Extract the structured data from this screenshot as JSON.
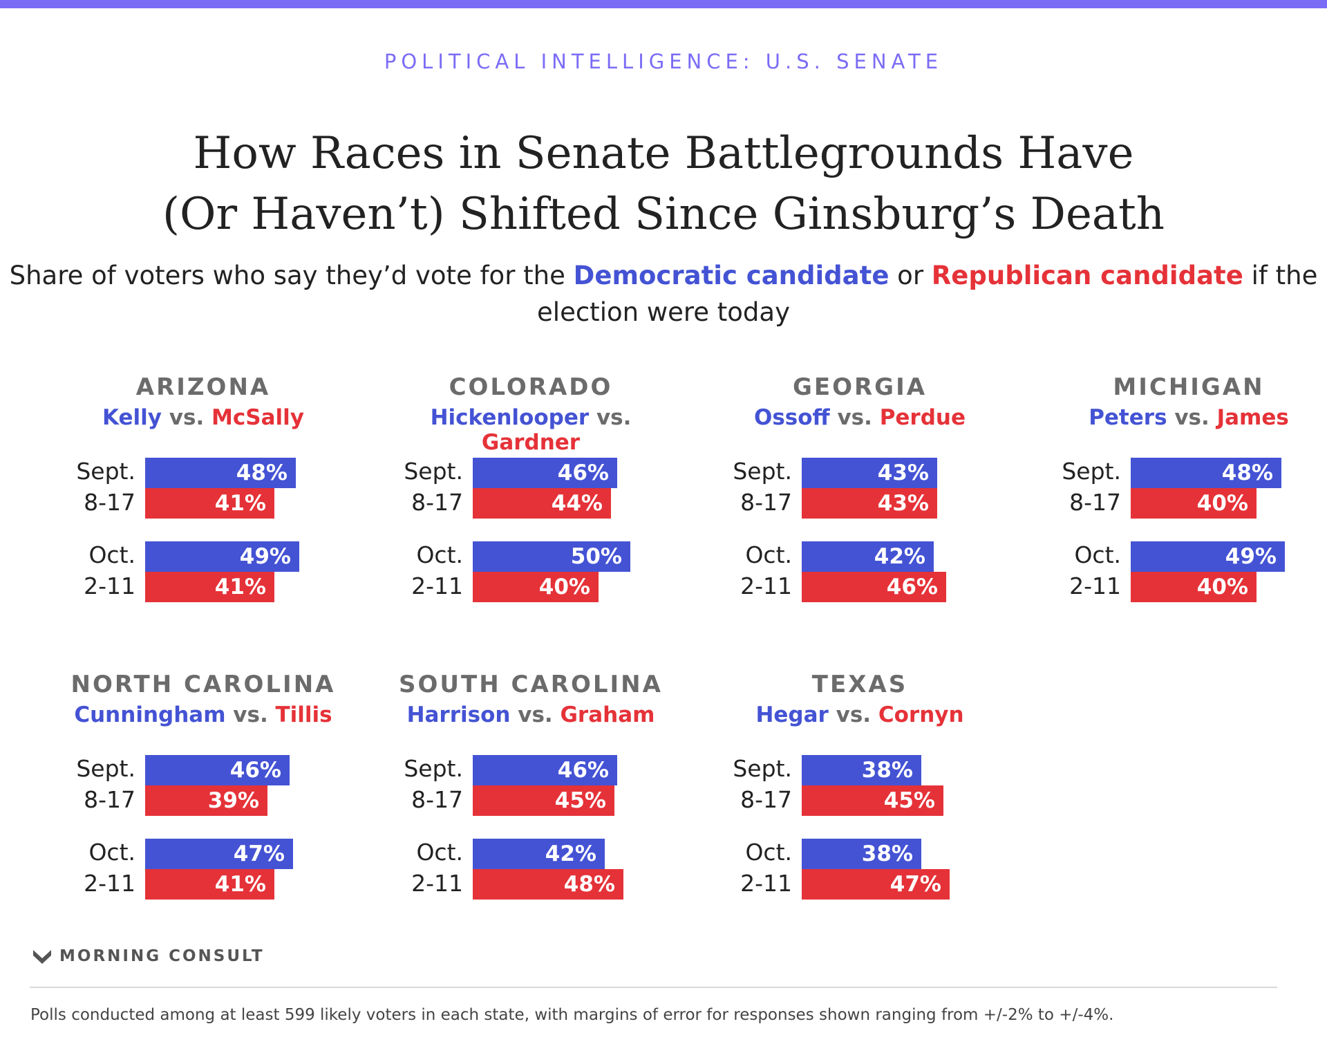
{
  "colors": {
    "accent": "#7b6cf6",
    "kicker": "#7b6cf6",
    "democratic": "#4453d4",
    "republican": "#e53238",
    "state_label": "#6b6b6b"
  },
  "kicker": "POLITICAL INTELLIGENCE: U.S. SENATE",
  "title_line1": "How Races in Senate Battlegrounds Have",
  "title_line2": "(Or Haven’t) Shifted Since Ginsburg’s Death",
  "subtitle": {
    "part1": "Share of voters who say they’d vote for the ",
    "dem": "Democratic candidate",
    "part2": " or ",
    "rep": "Republican candidate",
    "part3": " if the election were today"
  },
  "vs": "vs.",
  "periods": [
    {
      "line1": "Sept.",
      "line2": "8-17"
    },
    {
      "line1": "Oct.",
      "line2": "2-11"
    }
  ],
  "chart_data": {
    "type": "bar",
    "orientation": "horizontal",
    "unit": "%",
    "categories": [
      "Sept. 8-17",
      "Oct. 2-11"
    ],
    "series_colors": {
      "Democratic candidate": "#4453d4",
      "Republican candidate": "#e53238"
    },
    "panels": [
      {
        "state": "ARIZONA",
        "dem": "Kelly",
        "rep": "McSally",
        "dem_values": [
          48,
          49
        ],
        "rep_values": [
          41,
          41
        ]
      },
      {
        "state": "COLORADO",
        "dem": "Hickenlooper",
        "rep": "Gardner",
        "dem_values": [
          46,
          50
        ],
        "rep_values": [
          44,
          40
        ]
      },
      {
        "state": "GEORGIA",
        "dem": "Ossoff",
        "rep": "Perdue",
        "dem_values": [
          43,
          42
        ],
        "rep_values": [
          43,
          46
        ]
      },
      {
        "state": "MICHIGAN",
        "dem": "Peters",
        "rep": "James",
        "dem_values": [
          48,
          49
        ],
        "rep_values": [
          40,
          40
        ]
      },
      {
        "state": "NORTH CAROLINA",
        "dem": "Cunningham",
        "rep": "Tillis",
        "dem_values": [
          46,
          47
        ],
        "rep_values": [
          39,
          41
        ]
      },
      {
        "state": "SOUTH CAROLINA",
        "dem": "Harrison",
        "rep": "Graham",
        "dem_values": [
          46,
          42
        ],
        "rep_values": [
          45,
          48
        ]
      },
      {
        "state": "TEXAS",
        "dem": "Hegar",
        "rep": "Cornyn",
        "dem_values": [
          38,
          38
        ],
        "rep_values": [
          45,
          47
        ]
      }
    ]
  },
  "brand": "MORNING CONSULT",
  "footnote": "Polls conducted among at least 599 likely voters in each state, with margins of error for responses shown ranging from +/-2% to +/-4%."
}
